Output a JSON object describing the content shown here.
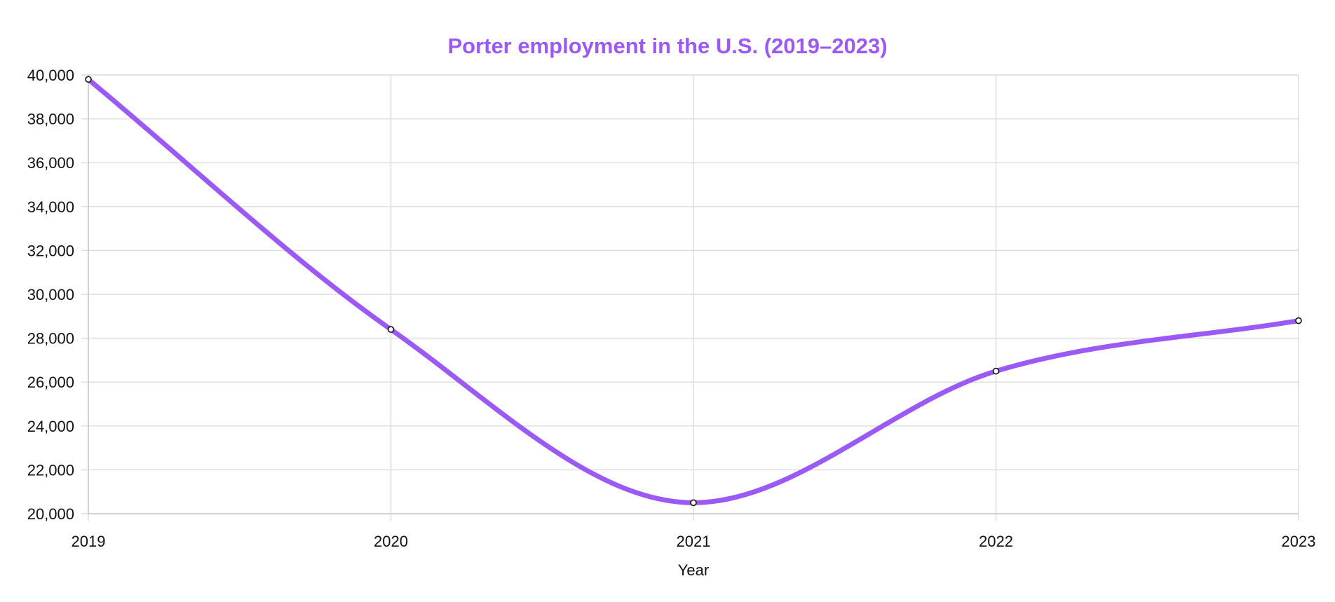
{
  "chart_data": {
    "type": "line",
    "title": "Porter employment in the U.S. (2019–2023)",
    "xlabel": "Year",
    "ylabel": "",
    "x": [
      "2019",
      "2020",
      "2021",
      "2022",
      "2023"
    ],
    "series": [
      {
        "values": [
          39800,
          28400,
          20500,
          26500,
          28800
        ]
      }
    ],
    "ylim": [
      20000,
      40000
    ],
    "yticks": [
      20000,
      22000,
      24000,
      26000,
      28000,
      30000,
      32000,
      34000,
      36000,
      38000,
      40000
    ],
    "ytick_labels": [
      "20,000",
      "22,000",
      "24,000",
      "26,000",
      "28,000",
      "30,000",
      "32,000",
      "34,000",
      "36,000",
      "38,000",
      "40,000"
    ],
    "grid": true,
    "legend": false,
    "line_color": "#9b59f6",
    "title_color": "#9b59f6",
    "marker_fill": "#ffffff",
    "marker_stroke": "#111111"
  }
}
